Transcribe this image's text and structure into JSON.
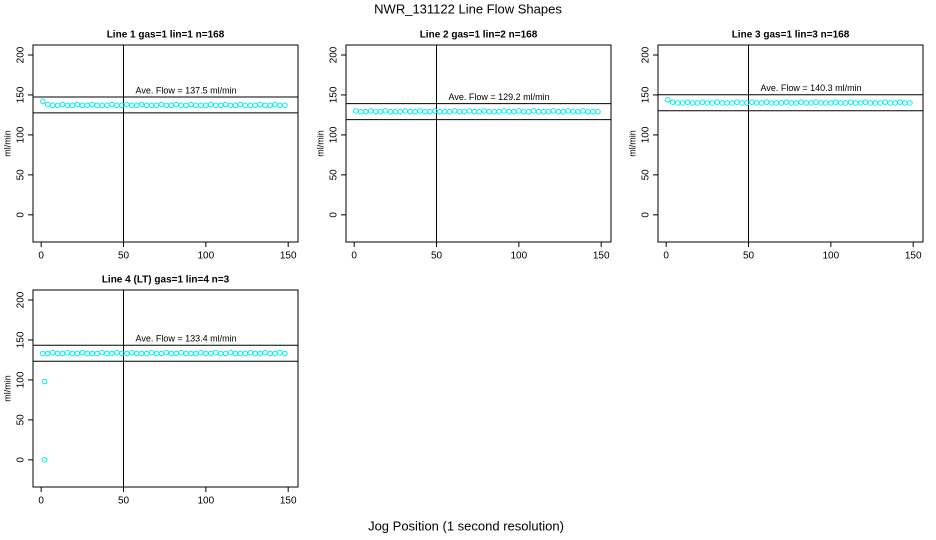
{
  "title": "NWR_131122  Line Flow Shapes",
  "x_label": "Jog Position (1 second resolution)",
  "chart_data": [
    {
      "type": "scatter",
      "title": "Line 1 gas=1 lin=1 n=168",
      "y_label": "ml/min",
      "color": "#00eeee",
      "annotation": "Ave. Flow =  137.5  ml/min",
      "hlines": [
        147.5,
        127.5
      ],
      "vline": 50,
      "xlim": [
        -4.96,
        155.96
      ],
      "ylim": [
        -34,
        212.5
      ],
      "xticks": [
        0,
        50,
        100,
        150
      ],
      "yticks": [
        0,
        50,
        100,
        150,
        200
      ],
      "x": [
        1,
        4,
        7,
        10,
        13,
        16,
        19,
        22,
        25,
        28,
        31,
        34,
        37,
        40,
        43,
        46,
        49,
        52,
        55,
        58,
        61,
        64,
        67,
        70,
        73,
        76,
        79,
        82,
        85,
        88,
        91,
        94,
        97,
        100,
        103,
        106,
        109,
        112,
        115,
        118,
        121,
        124,
        127,
        130,
        133,
        136,
        139,
        142,
        145,
        148
      ],
      "values": [
        142,
        138,
        137,
        137,
        138,
        137,
        137,
        138,
        137,
        137,
        138,
        137,
        137,
        137,
        138,
        137,
        137,
        138,
        137,
        137,
        138,
        137,
        137,
        137,
        138,
        137,
        137,
        138,
        137,
        137,
        138,
        137,
        137,
        137,
        138,
        137,
        137,
        138,
        137,
        137,
        138,
        137,
        137,
        137,
        138,
        137,
        137,
        138,
        137,
        137
      ]
    },
    {
      "type": "scatter",
      "title": "Line 2 gas=1 lin=2 n=168",
      "y_label": "ml/min",
      "color": "#00eeee",
      "annotation": "Ave. Flow =  129.2  ml/min",
      "hlines": [
        139.2,
        119.2
      ],
      "vline": 50,
      "xlim": [
        -4.96,
        155.96
      ],
      "ylim": [
        -34,
        212.5
      ],
      "xticks": [
        0,
        50,
        100,
        150
      ],
      "yticks": [
        0,
        50,
        100,
        150,
        200
      ],
      "x": [
        1,
        4,
        7,
        10,
        13,
        16,
        19,
        22,
        25,
        28,
        31,
        34,
        37,
        40,
        43,
        46,
        49,
        52,
        55,
        58,
        61,
        64,
        67,
        70,
        73,
        76,
        79,
        82,
        85,
        88,
        91,
        94,
        97,
        100,
        103,
        106,
        109,
        112,
        115,
        118,
        121,
        124,
        127,
        130,
        133,
        136,
        139,
        142,
        145,
        148
      ],
      "values": [
        130,
        129,
        129,
        130,
        129,
        129,
        130,
        129,
        129,
        129,
        130,
        129,
        129,
        130,
        129,
        129,
        130,
        129,
        129,
        129,
        130,
        129,
        129,
        130,
        129,
        129,
        130,
        129,
        129,
        129,
        130,
        129,
        129,
        130,
        129,
        129,
        130,
        129,
        129,
        129,
        130,
        129,
        129,
        130,
        129,
        129,
        130,
        129,
        129,
        129
      ]
    },
    {
      "type": "scatter",
      "title": "Line 3 gas=1 lin=3 n=168",
      "y_label": "ml/min",
      "color": "#00eeee",
      "annotation": "Ave. Flow =  140.3  ml/min",
      "hlines": [
        150.3,
        130.3
      ],
      "vline": 50,
      "xlim": [
        -4.96,
        155.96
      ],
      "ylim": [
        -34,
        212.5
      ],
      "xticks": [
        0,
        50,
        100,
        150
      ],
      "yticks": [
        0,
        50,
        100,
        150,
        200
      ],
      "x": [
        1,
        4,
        7,
        10,
        13,
        16,
        19,
        22,
        25,
        28,
        31,
        34,
        37,
        40,
        43,
        46,
        49,
        52,
        55,
        58,
        61,
        64,
        67,
        70,
        73,
        76,
        79,
        82,
        85,
        88,
        91,
        94,
        97,
        100,
        103,
        106,
        109,
        112,
        115,
        118,
        121,
        124,
        127,
        130,
        133,
        136,
        139,
        142,
        145,
        148
      ],
      "values": [
        144,
        141,
        140,
        140,
        141,
        140,
        140,
        141,
        140,
        140,
        141,
        140,
        140,
        140,
        141,
        140,
        140,
        141,
        140,
        140,
        141,
        140,
        140,
        140,
        141,
        140,
        140,
        141,
        140,
        140,
        141,
        140,
        140,
        140,
        141,
        140,
        140,
        141,
        140,
        140,
        141,
        140,
        140,
        140,
        141,
        140,
        140,
        141,
        140,
        140
      ]
    },
    {
      "type": "scatter",
      "title": "Line 4 (LT) gas=1 lin=4 n=3",
      "y_label": "ml/min",
      "color": "#00eeee",
      "annotation": "Ave. Flow =  133.4  ml/min",
      "hlines": [
        143.4,
        123.4
      ],
      "vline": 50,
      "xlim": [
        -4.96,
        155.96
      ],
      "ylim": [
        -34,
        212.5
      ],
      "xticks": [
        0,
        50,
        100,
        150
      ],
      "yticks": [
        0,
        50,
        100,
        150,
        200
      ],
      "x": [
        2,
        2,
        1,
        4,
        7,
        10,
        13,
        16,
        19,
        22,
        25,
        28,
        31,
        34,
        37,
        40,
        43,
        46,
        49,
        52,
        55,
        58,
        61,
        64,
        67,
        70,
        73,
        76,
        79,
        82,
        85,
        88,
        91,
        94,
        97,
        100,
        103,
        106,
        109,
        112,
        115,
        118,
        121,
        124,
        127,
        130,
        133,
        136,
        139,
        142,
        145,
        148
      ],
      "values": [
        0,
        98,
        133,
        133,
        134,
        133,
        133,
        134,
        133,
        133,
        134,
        133,
        133,
        133,
        134,
        133,
        133,
        134,
        133,
        133,
        134,
        133,
        133,
        133,
        134,
        133,
        133,
        134,
        133,
        133,
        134,
        133,
        133,
        133,
        134,
        133,
        133,
        134,
        133,
        133,
        134,
        133,
        133,
        133,
        134,
        133,
        133,
        134,
        133,
        133,
        134,
        133
      ]
    }
  ]
}
